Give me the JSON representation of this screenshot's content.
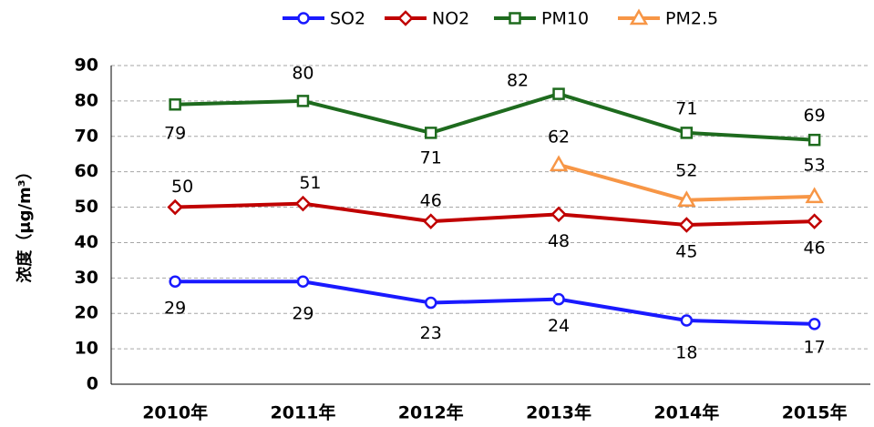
{
  "chart_data": {
    "type": "line",
    "ylabel": "浓度（μg/m³）",
    "categories": [
      "2010年",
      "2011年",
      "2012年",
      "2013年",
      "2014年",
      "2015年"
    ],
    "series": [
      {
        "name": "SO2",
        "color": "#1a1aff",
        "marker": "circle",
        "values": [
          29,
          29,
          23,
          24,
          18,
          17
        ]
      },
      {
        "name": "NO2",
        "color": "#c00000",
        "marker": "diamond",
        "values": [
          50,
          51,
          46,
          48,
          45,
          46
        ]
      },
      {
        "name": "PM10",
        "color": "#1e6b1e",
        "marker": "square",
        "values": [
          79,
          80,
          71,
          82,
          71,
          69
        ]
      },
      {
        "name": "PM2.5",
        "color": "#f79646",
        "marker": "triangle",
        "values": [
          null,
          null,
          null,
          62,
          52,
          53
        ]
      }
    ],
    "ylim": [
      0,
      90
    ],
    "yticks": [
      0,
      10,
      20,
      30,
      40,
      50,
      60,
      70,
      80,
      90
    ],
    "grid": true,
    "legend": "top"
  }
}
